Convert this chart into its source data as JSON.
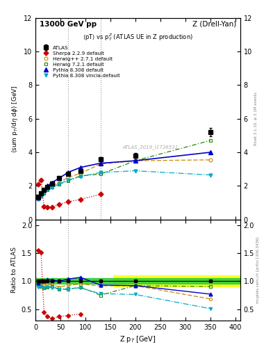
{
  "title_left": "13000 GeV pp",
  "title_right": "Z (Drell-Yan)",
  "subplot_title": "<pT> vs p_T^Z (ATLAS UE in Z production)",
  "ylabel_main": "<sum p_T/dη dφ> [GeV]",
  "ylabel_ratio": "Ratio to ATLAS",
  "xlabel": "Z p_T [GeV]",
  "watermark": "ATLAS_2019_I1736531",
  "right_label": "Rivet 3.1.10, ≥ 3.1M events",
  "right_label2": "mcplots.cern.ch [arXiv:1306.3436]",
  "atlas_x": [
    5,
    11,
    17,
    24,
    33,
    47,
    65,
    90,
    130,
    200,
    350
  ],
  "atlas_y": [
    1.35,
    1.55,
    1.75,
    1.95,
    2.15,
    2.45,
    2.7,
    2.9,
    3.6,
    3.8,
    5.2
  ],
  "atlas_yerr": [
    0.05,
    0.05,
    0.05,
    0.05,
    0.06,
    0.07,
    0.08,
    0.1,
    0.12,
    0.15,
    0.25
  ],
  "herwig271_x": [
    5,
    11,
    17,
    24,
    33,
    47,
    65,
    90,
    130,
    200,
    350
  ],
  "herwig271_y": [
    1.35,
    1.5,
    1.65,
    1.85,
    2.0,
    2.2,
    2.5,
    2.75,
    3.3,
    3.5,
    3.55
  ],
  "herwig271_color": "#cc8800",
  "herwig271_label": "Herwig++ 2.7.1 default",
  "herwig721_x": [
    5,
    11,
    17,
    24,
    33,
    47,
    65,
    90,
    130,
    200,
    350
  ],
  "herwig721_y": [
    1.25,
    1.4,
    1.55,
    1.75,
    1.95,
    2.1,
    2.3,
    2.6,
    2.7,
    3.5,
    4.7
  ],
  "herwig721_color": "#228800",
  "herwig721_label": "Herwig 7.2.1 default",
  "pythia8308_x": [
    5,
    11,
    17,
    24,
    33,
    47,
    65,
    90,
    130,
    200,
    350
  ],
  "pythia8308_y": [
    1.3,
    1.55,
    1.75,
    2.0,
    2.2,
    2.45,
    2.8,
    3.1,
    3.35,
    3.5,
    4.0
  ],
  "pythia8308_color": "#0000cc",
  "pythia8308_label": "Pythia 8.308 default",
  "pythia8308v_x": [
    5,
    11,
    17,
    24,
    33,
    47,
    65,
    90,
    130,
    200,
    350
  ],
  "pythia8308v_y": [
    1.2,
    1.4,
    1.55,
    1.75,
    1.9,
    2.1,
    2.35,
    2.55,
    2.8,
    2.9,
    2.65
  ],
  "pythia8308v_color": "#00aacc",
  "pythia8308v_label": "Pythia 8.308 vincia-default",
  "sherpa229_x": [
    5,
    11,
    17,
    24,
    33,
    47,
    65,
    90,
    130
  ],
  "sherpa229_y": [
    2.1,
    2.35,
    0.78,
    0.72,
    0.72,
    0.9,
    1.05,
    1.2,
    1.5
  ],
  "sherpa229_color": "#cc0000",
  "sherpa229_label": "Sherpa 2.2.9 default",
  "vline1_x": 65,
  "vline2_x": 130,
  "ylim_main": [
    0,
    12
  ],
  "ylim_ratio": [
    0.3,
    2.1
  ],
  "xlim": [
    0,
    410
  ],
  "atlas_band_green": 0.05,
  "atlas_band_yellow": 0.1,
  "ratio_herwig271": [
    1.0,
    0.968,
    0.943,
    0.949,
    0.93,
    0.898,
    0.926,
    0.948,
    0.917,
    0.921,
    0.683
  ],
  "ratio_herwig721": [
    0.926,
    0.903,
    0.886,
    0.897,
    0.907,
    0.857,
    0.852,
    0.897,
    0.75,
    0.921,
    0.904
  ],
  "ratio_pythia8308": [
    0.963,
    1.0,
    1.0,
    1.026,
    1.023,
    1.0,
    1.037,
    1.069,
    0.931,
    0.921,
    0.769
  ],
  "ratio_pythia8308v": [
    0.889,
    0.903,
    0.886,
    0.897,
    0.884,
    0.857,
    0.87,
    0.879,
    0.778,
    0.763,
    0.51
  ],
  "ratio_sherpa229": [
    1.556,
    1.516,
    0.446,
    0.369,
    0.335,
    0.367,
    0.389,
    0.414,
    null
  ]
}
